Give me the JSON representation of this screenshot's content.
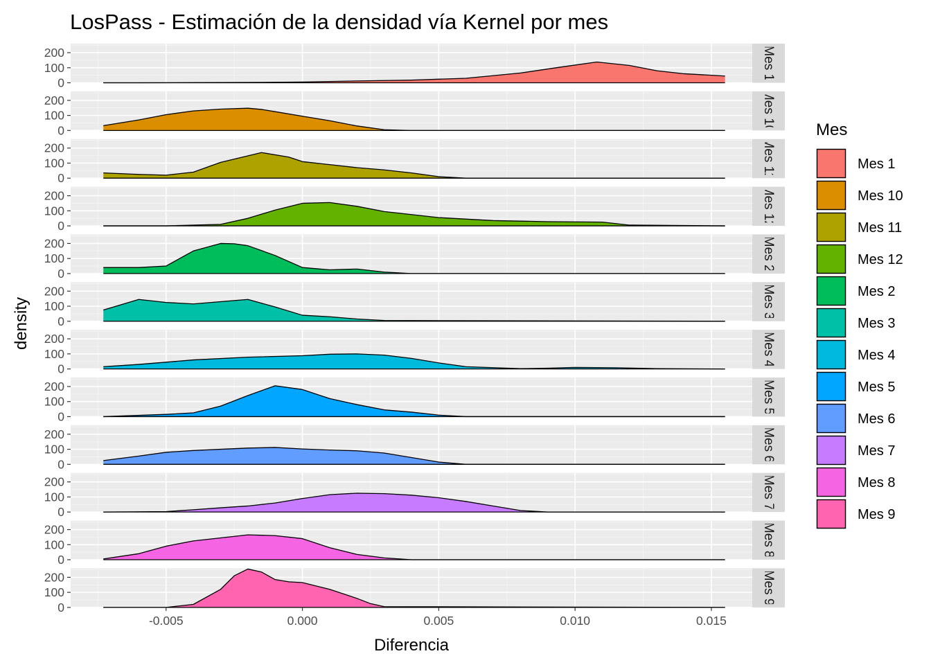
{
  "chart_data": {
    "type": "area",
    "title": "LosPass - Estimación de la densidad vía Kernel por mes",
    "xlabel": "Diferencia",
    "ylabel": "density",
    "xlim": [
      -0.0085,
      0.0165
    ],
    "ylim": [
      0,
      260
    ],
    "x_ticks": [
      -0.005,
      0.0,
      0.005,
      0.01,
      0.015
    ],
    "x_tick_labels": [
      "-0.005",
      "0.000",
      "0.005",
      "0.010",
      "0.015"
    ],
    "y_ticks": [
      0,
      100,
      200
    ],
    "y_tick_labels": [
      "0",
      "100",
      "200"
    ],
    "grid": true,
    "legend": {
      "title": "Mes",
      "position": "right"
    },
    "series": [
      {
        "name": "Mes 1",
        "color": "#F8766D",
        "x": [
          -0.0073,
          -0.006,
          -0.004,
          -0.002,
          0.0,
          0.002,
          0.004,
          0.006,
          0.008,
          0.0095,
          0.0108,
          0.012,
          0.013,
          0.014,
          0.0155
        ],
        "y": [
          0,
          0,
          1,
          2,
          5,
          12,
          18,
          30,
          65,
          105,
          138,
          115,
          80,
          60,
          45
        ]
      },
      {
        "name": "Mes 10",
        "color": "#DB8E00",
        "x": [
          -0.0073,
          -0.006,
          -0.005,
          -0.004,
          -0.003,
          -0.002,
          -0.0015,
          -0.001,
          0.0,
          0.001,
          0.002,
          0.003,
          0.004,
          0.006,
          0.0155
        ],
        "y": [
          32,
          70,
          105,
          130,
          142,
          148,
          140,
          125,
          95,
          65,
          30,
          5,
          0,
          0,
          0
        ]
      },
      {
        "name": "Mes 11",
        "color": "#AEA200",
        "x": [
          -0.0073,
          -0.006,
          -0.005,
          -0.004,
          -0.003,
          -0.0015,
          -0.0005,
          0.0,
          0.001,
          0.002,
          0.003,
          0.004,
          0.005,
          0.006,
          0.0155
        ],
        "y": [
          35,
          25,
          20,
          40,
          105,
          170,
          140,
          110,
          90,
          70,
          55,
          35,
          10,
          0,
          0
        ]
      },
      {
        "name": "Mes 12",
        "color": "#64B200",
        "x": [
          -0.0073,
          -0.005,
          -0.003,
          -0.002,
          -0.001,
          0.0,
          0.001,
          0.002,
          0.003,
          0.005,
          0.007,
          0.009,
          0.011,
          0.012,
          0.0155
        ],
        "y": [
          0,
          0,
          10,
          50,
          105,
          150,
          155,
          130,
          95,
          55,
          35,
          28,
          25,
          5,
          0
        ]
      },
      {
        "name": "Mes 2",
        "color": "#00BD5C",
        "x": [
          -0.0073,
          -0.006,
          -0.005,
          -0.004,
          -0.003,
          -0.0025,
          -0.002,
          -0.001,
          0.0,
          0.001,
          0.002,
          0.003,
          0.004,
          0.0155
        ],
        "y": [
          40,
          40,
          50,
          150,
          200,
          198,
          185,
          120,
          40,
          25,
          30,
          10,
          0,
          0
        ]
      },
      {
        "name": "Mes 3",
        "color": "#00C1A7",
        "x": [
          -0.0073,
          -0.006,
          -0.005,
          -0.004,
          -0.003,
          -0.002,
          -0.001,
          0.0,
          0.001,
          0.002,
          0.003,
          0.0155
        ],
        "y": [
          75,
          145,
          125,
          115,
          130,
          145,
          95,
          40,
          30,
          15,
          5,
          0
        ]
      },
      {
        "name": "Mes 4",
        "color": "#00BADE",
        "x": [
          -0.0073,
          -0.006,
          -0.004,
          -0.002,
          0.0,
          0.001,
          0.002,
          0.003,
          0.004,
          0.005,
          0.006,
          0.008,
          0.009,
          0.01,
          0.0115,
          0.013,
          0.0155
        ],
        "y": [
          15,
          30,
          60,
          78,
          88,
          98,
          100,
          92,
          70,
          40,
          15,
          2,
          5,
          10,
          8,
          2,
          0
        ]
      },
      {
        "name": "Mes 5",
        "color": "#00A6FF",
        "x": [
          -0.0073,
          -0.005,
          -0.004,
          -0.003,
          -0.002,
          -0.001,
          0.0,
          0.001,
          0.002,
          0.003,
          0.004,
          0.005,
          0.006,
          0.0155
        ],
        "y": [
          0,
          15,
          25,
          70,
          140,
          205,
          180,
          120,
          80,
          45,
          30,
          10,
          0,
          0
        ]
      },
      {
        "name": "Mes 6",
        "color": "#619CFF",
        "x": [
          -0.0073,
          -0.006,
          -0.005,
          -0.004,
          -0.003,
          -0.002,
          -0.001,
          0.0,
          0.001,
          0.002,
          0.003,
          0.004,
          0.005,
          0.006,
          0.0155
        ],
        "y": [
          25,
          55,
          80,
          92,
          100,
          108,
          112,
          102,
          95,
          90,
          75,
          45,
          15,
          0,
          0
        ]
      },
      {
        "name": "Mes 7",
        "color": "#C77CFF",
        "x": [
          -0.0073,
          -0.005,
          -0.004,
          -0.003,
          -0.002,
          -0.001,
          0.0,
          0.001,
          0.002,
          0.003,
          0.004,
          0.005,
          0.006,
          0.007,
          0.008,
          0.009,
          0.0155
        ],
        "y": [
          0,
          3,
          15,
          28,
          40,
          60,
          90,
          115,
          125,
          122,
          112,
          95,
          70,
          40,
          10,
          0,
          0
        ]
      },
      {
        "name": "Mes 8",
        "color": "#F564E3",
        "x": [
          -0.0073,
          -0.006,
          -0.005,
          -0.004,
          -0.003,
          -0.002,
          -0.001,
          0.0,
          0.001,
          0.002,
          0.003,
          0.004,
          0.0155
        ],
        "y": [
          5,
          40,
          90,
          125,
          145,
          165,
          160,
          140,
          80,
          35,
          12,
          0,
          0
        ]
      },
      {
        "name": "Mes 9",
        "color": "#FF64B0",
        "x": [
          -0.0073,
          -0.005,
          -0.004,
          -0.003,
          -0.0025,
          -0.002,
          -0.0015,
          -0.001,
          -0.0005,
          0.0,
          0.001,
          0.002,
          0.0025,
          0.003,
          0.0155
        ],
        "y": [
          0,
          0,
          20,
          120,
          210,
          255,
          235,
          185,
          170,
          165,
          120,
          60,
          25,
          5,
          0
        ]
      }
    ]
  }
}
